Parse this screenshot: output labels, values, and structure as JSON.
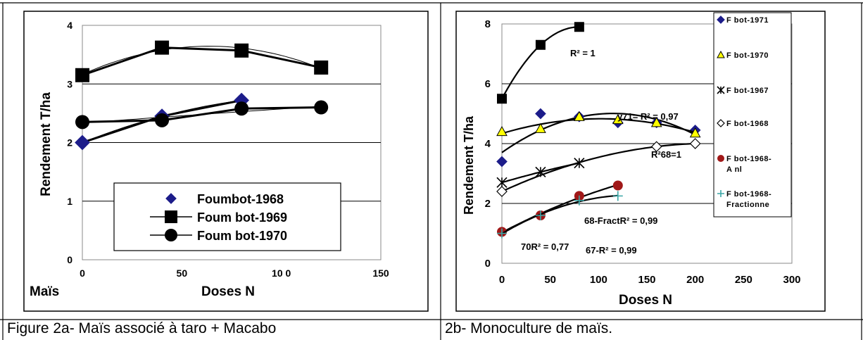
{
  "captions": {
    "left": "Figure 2a- Maïs associé à taro + Macabo",
    "right": "2b- Monoculture de maïs."
  },
  "chart_data": [
    {
      "type": "line",
      "title": "",
      "xlabel": "Doses N",
      "ylabel": "Rendement T/ha",
      "corner_label": "Maïs",
      "xlim": [
        0,
        150
      ],
      "ylim": [
        0,
        4
      ],
      "x_ticks": [
        "0",
        "50",
        "10 0",
        "150"
      ],
      "y_ticks": [
        "0",
        "1",
        "2",
        "3",
        "4"
      ],
      "grid": "horizontal",
      "legend_position": "bottom-right",
      "series": [
        {
          "name": "Foumbot-1968",
          "marker": "diamond",
          "color": "#1c1c8a",
          "x": [
            0,
            40,
            80
          ],
          "y": [
            2.0,
            2.45,
            2.72
          ]
        },
        {
          "name": "Foum bot-1969",
          "marker": "square",
          "color": "#000000",
          "x": [
            0,
            40,
            80,
            120
          ],
          "y": [
            3.15,
            3.62,
            3.57,
            3.28
          ]
        },
        {
          "name": "Foum bot-1970",
          "marker": "circle",
          "color": "#000000",
          "x": [
            0,
            40,
            80,
            120
          ],
          "y": [
            2.35,
            2.38,
            2.58,
            2.6
          ]
        }
      ]
    },
    {
      "type": "line",
      "title": "",
      "xlabel": "Doses N",
      "ylabel": "Rendement T/ha",
      "xlim": [
        0,
        300
      ],
      "ylim": [
        0,
        8
      ],
      "x_ticks": [
        "0",
        "50",
        "100",
        "150",
        "200",
        "250",
        "300"
      ],
      "y_ticks": [
        "0",
        "2",
        "4",
        "6",
        "8"
      ],
      "grid": "horizontal",
      "legend_position": "right",
      "annotations": [
        "R² = 1",
        "y71= R² = 0,97",
        "R²68=1",
        "68-FractR² = 0,99",
        "70R² = 0,77",
        "67-R² = 0,99"
      ],
      "series": [
        {
          "name": "F bot-1971",
          "marker": "diamond",
          "color": "#1c1c8a",
          "x": [
            0,
            40,
            80,
            120,
            160,
            200
          ],
          "y": [
            3.4,
            5.0,
            4.9,
            4.7,
            4.7,
            4.45
          ]
        },
        {
          "name": "F bot-1970",
          "marker": "triangle",
          "color": "#ffff00",
          "x": [
            0,
            40,
            80,
            120,
            160,
            200
          ],
          "y": [
            4.4,
            4.5,
            4.9,
            4.8,
            4.7,
            4.35
          ]
        },
        {
          "name": "F bot-1967",
          "marker": "star",
          "color": "#000000",
          "x": [
            0,
            40,
            80
          ],
          "y": [
            2.7,
            3.05,
            3.35
          ]
        },
        {
          "name": "F bot-1968",
          "marker": "open-diamond",
          "color": "#000000",
          "x": [
            0,
            160,
            200
          ],
          "y": [
            2.4,
            3.9,
            4.0
          ]
        },
        {
          "name": "F bot-1968-A nl",
          "marker": "circle",
          "color": "#a01818",
          "x": [
            0,
            40,
            80,
            120
          ],
          "y": [
            1.05,
            1.6,
            2.25,
            2.6
          ]
        },
        {
          "name": "F bot-1968-Fractionne",
          "marker": "plus",
          "color": "#3aa6a6",
          "x": [
            0,
            40,
            80,
            120
          ],
          "y": [
            1.0,
            1.6,
            2.1,
            2.25
          ]
        },
        {
          "name": "",
          "marker": "square",
          "color": "#000000",
          "x": [
            0,
            40,
            80
          ],
          "y": [
            5.5,
            7.3,
            7.9
          ]
        }
      ]
    }
  ]
}
